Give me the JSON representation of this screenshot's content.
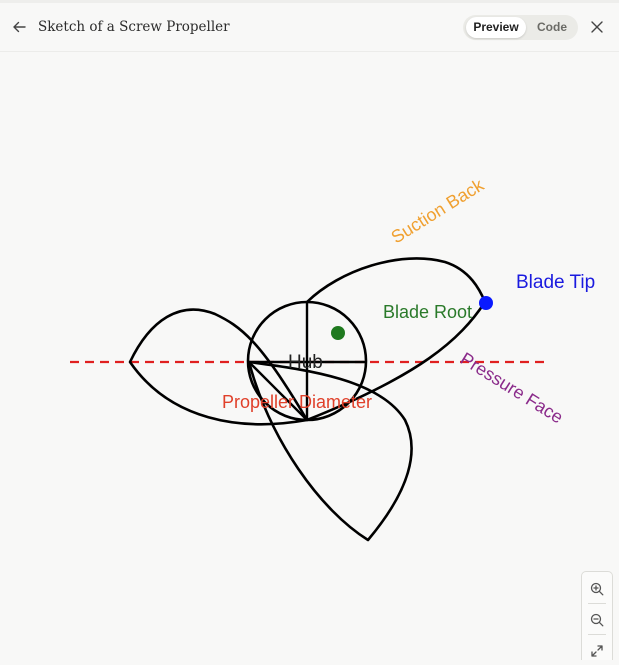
{
  "header": {
    "title": "Sketch of a Screw Propeller",
    "toggle": {
      "preview_label": "Preview",
      "code_label": "Code",
      "active": "Preview"
    }
  },
  "icons": {
    "back": "arrow-left-icon",
    "close": "close-icon",
    "zoom_in": "zoom-in-icon",
    "zoom_out": "zoom-out-icon",
    "fit": "expand-icon"
  },
  "diagram": {
    "labels": {
      "suction_back": "Suction Back",
      "blade_tip": "Blade Tip",
      "blade_root": "Blade Root",
      "hub": "Hub",
      "pressure_face": "Pressure Face",
      "propeller_diameter": "Propeller Diameter"
    },
    "colors": {
      "suction_back": "#f0a030",
      "blade_tip": "#1a1adf",
      "blade_root": "#2a7a2a",
      "pressure_face": "#8a2a8a",
      "propeller_diameter": "#e0402a",
      "diameter_line": "#e02020",
      "outline": "#000000",
      "tip_marker": "#0a1aff",
      "root_marker": "#1f7a1f"
    }
  }
}
